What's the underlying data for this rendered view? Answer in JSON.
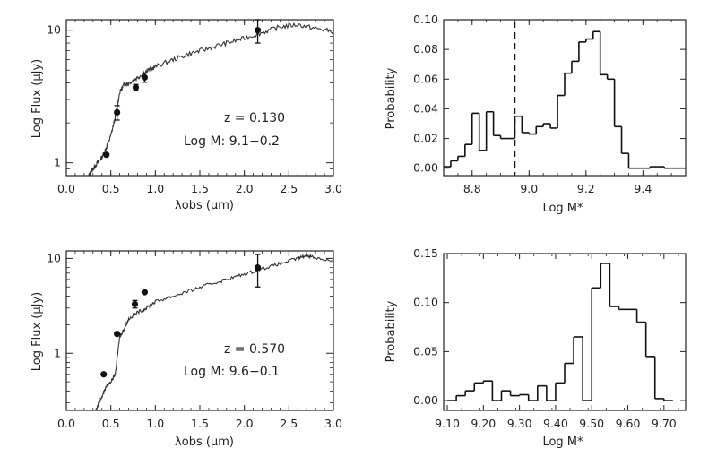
{
  "chart_data": [
    {
      "type": "scatter",
      "panel": "sed-top",
      "xlabel": "λobs (μm)",
      "ylabel": "Log Flux (μJy)",
      "xlim": [
        0.0,
        3.0
      ],
      "ylim": [
        0.8,
        12
      ],
      "yscale": "log",
      "x_ticks": [
        "0.0",
        "0.5",
        "1.0",
        "1.5",
        "2.0",
        "2.5",
        "3.0"
      ],
      "y_ticks": [
        "1",
        "10"
      ],
      "annotations": [
        "z = 0.130",
        "Log M: 9.1−0.2"
      ],
      "model_sed": {
        "x": [
          0.25,
          0.3,
          0.35,
          0.4,
          0.45,
          0.5,
          0.55,
          0.6,
          0.65,
          0.7,
          0.8,
          0.9,
          1.0,
          1.2,
          1.4,
          1.6,
          1.8,
          2.0,
          2.2,
          2.4,
          2.6,
          2.8,
          3.0
        ],
        "y": [
          0.8,
          0.9,
          1.0,
          1.1,
          1.3,
          1.6,
          2.2,
          3.4,
          3.9,
          4.0,
          4.4,
          4.9,
          5.3,
          6.0,
          6.7,
          7.3,
          8.0,
          8.7,
          9.6,
          10.6,
          11.0,
          10.3,
          9.8
        ]
      },
      "points": {
        "x": [
          0.45,
          0.57,
          0.78,
          0.88,
          2.15
        ],
        "y": [
          1.15,
          2.4,
          3.7,
          4.4,
          10.0
        ],
        "yerr_low": [
          0.0,
          0.3,
          0.2,
          0.35,
          2.0
        ],
        "yerr_high": [
          0.0,
          0.3,
          0.2,
          0.35,
          2.0
        ]
      }
    },
    {
      "type": "bar",
      "panel": "prob-top",
      "style": "step",
      "xlabel": "Log M*",
      "ylabel": "Probability",
      "xlim": [
        8.7,
        9.55
      ],
      "ylim": [
        -0.005,
        0.1
      ],
      "x_ticks": [
        "8.8",
        "9.0",
        "9.2",
        "9.4"
      ],
      "y_ticks": [
        "0.00",
        "0.02",
        "0.04",
        "0.06",
        "0.08",
        "0.10"
      ],
      "dashed_line_x": 8.95,
      "bin_starts": [
        8.7,
        8.725,
        8.75,
        8.775,
        8.8,
        8.825,
        8.85,
        8.875,
        8.9,
        8.925,
        8.95,
        8.975,
        9.0,
        9.025,
        9.05,
        9.075,
        9.1,
        9.125,
        9.15,
        9.175,
        9.2,
        9.225,
        9.25,
        9.275,
        9.3,
        9.325,
        9.35,
        9.375,
        9.4,
        9.425,
        9.45,
        9.475,
        9.5,
        9.525
      ],
      "values": [
        0.001,
        0.005,
        0.008,
        0.016,
        0.037,
        0.012,
        0.038,
        0.022,
        0.02,
        0.02,
        0.035,
        0.024,
        0.023,
        0.028,
        0.03,
        0.027,
        0.049,
        0.064,
        0.072,
        0.085,
        0.087,
        0.092,
        0.063,
        0.06,
        0.028,
        0.01,
        0.0,
        0.0,
        0.0,
        0.001,
        0.001,
        0.0,
        0.0,
        0.0
      ],
      "bin_width": 0.025
    },
    {
      "type": "scatter",
      "panel": "sed-bottom",
      "xlabel": "λobs (μm)",
      "ylabel": "Log Flux (μJy)",
      "xlim": [
        0.0,
        3.0
      ],
      "ylim": [
        0.25,
        12
      ],
      "yscale": "log",
      "x_ticks": [
        "0.0",
        "0.5",
        "1.0",
        "1.5",
        "2.0",
        "2.5",
        "3.0"
      ],
      "y_ticks": [
        "1",
        "10"
      ],
      "annotations": [
        "z = 0.570",
        "Log M: 9.6−0.1"
      ],
      "model_sed": {
        "x": [
          0.33,
          0.4,
          0.45,
          0.5,
          0.55,
          0.6,
          0.65,
          0.7,
          0.8,
          0.9,
          1.0,
          1.2,
          1.4,
          1.6,
          1.8,
          2.0,
          2.2,
          2.4,
          2.6,
          2.7,
          2.8,
          3.0
        ],
        "y": [
          0.25,
          0.35,
          0.45,
          0.5,
          0.6,
          1.5,
          1.8,
          2.3,
          2.7,
          3.0,
          3.5,
          4.0,
          4.6,
          5.3,
          6.0,
          6.8,
          7.8,
          8.8,
          10.0,
          10.8,
          10.2,
          9.3
        ]
      },
      "points": {
        "x": [
          0.42,
          0.57,
          0.77,
          0.88,
          2.15
        ],
        "y": [
          0.6,
          1.6,
          3.3,
          4.4,
          8.0
        ],
        "yerr_low": [
          0.0,
          0.0,
          0.3,
          0.0,
          3.0
        ],
        "yerr_high": [
          0.0,
          0.0,
          0.3,
          0.0,
          3.0
        ]
      }
    },
    {
      "type": "bar",
      "panel": "prob-bottom",
      "style": "step",
      "xlabel": "Log M*",
      "ylabel": "Probability",
      "xlim": [
        9.09,
        9.76
      ],
      "ylim": [
        -0.01,
        0.15
      ],
      "x_ticks": [
        "9.10",
        "9.20",
        "9.30",
        "9.40",
        "9.50",
        "9.60",
        "9.70"
      ],
      "y_ticks": [
        "0.00",
        "0.05",
        "0.10",
        "0.15"
      ],
      "bin_starts": [
        9.1,
        9.125,
        9.15,
        9.175,
        9.2,
        9.225,
        9.25,
        9.275,
        9.3,
        9.325,
        9.35,
        9.375,
        9.4,
        9.425,
        9.45,
        9.475,
        9.5,
        9.525,
        9.55,
        9.575,
        9.6,
        9.625,
        9.65,
        9.675,
        9.7
      ],
      "values": [
        0.0,
        0.005,
        0.01,
        0.018,
        0.02,
        0.0,
        0.01,
        0.005,
        0.006,
        0.0,
        0.015,
        0.0,
        0.018,
        0.038,
        0.065,
        0.0,
        0.115,
        0.14,
        0.096,
        0.093,
        0.093,
        0.08,
        0.045,
        0.002,
        0.0
      ],
      "bin_width": 0.025
    }
  ]
}
